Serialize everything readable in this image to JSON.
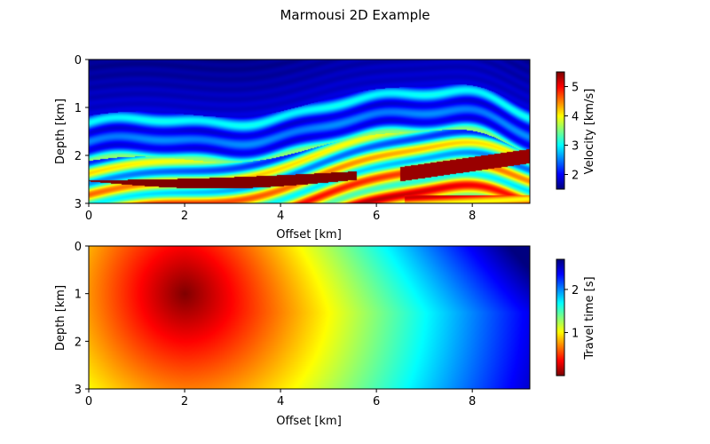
{
  "figure_title": "Marmousi 2D Example",
  "chart_data": [
    {
      "type": "heatmap",
      "name": "velocity",
      "colormap": "jet",
      "xlabel": "Offset [km]",
      "ylabel": "Depth [km]",
      "xlim": [
        0,
        9.2
      ],
      "ylim": [
        3,
        0
      ],
      "xticks": [
        "0",
        "2",
        "4",
        "6",
        "8"
      ],
      "yticks": [
        "0",
        "1",
        "2",
        "3"
      ],
      "colorbar": {
        "label": "Velocity [km/s]",
        "range": [
          1.5,
          5.5
        ],
        "ticks": [
          "2",
          "3",
          "4",
          "5"
        ]
      }
    },
    {
      "type": "heatmap",
      "name": "traveltime",
      "colormap": "jet_r",
      "xlabel": "Offset [km]",
      "ylabel": "Depth [km]",
      "xlim": [
        0,
        9.2
      ],
      "ylim": [
        3,
        0
      ],
      "source": {
        "x": 2.0,
        "z": 1.0
      },
      "xticks": [
        "0",
        "2",
        "4",
        "6",
        "8"
      ],
      "yticks": [
        "0",
        "1",
        "2",
        "3"
      ],
      "colorbar": {
        "label": "Travel time [s]",
        "range": [
          0,
          2.7
        ],
        "ticks": [
          "1",
          "2"
        ]
      }
    }
  ]
}
